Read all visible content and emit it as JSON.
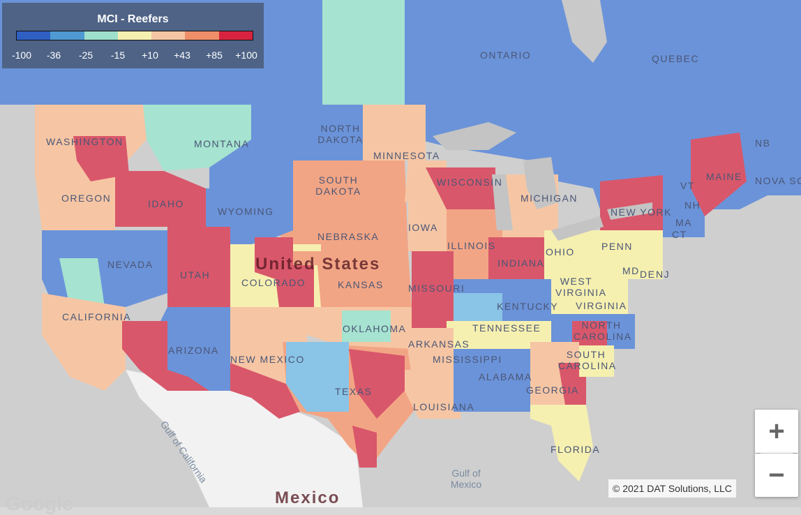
{
  "legend": {
    "title": "MCI - Reefers",
    "colors": [
      "#2f5fc2",
      "#4f9ad2",
      "#9fe0cc",
      "#f6f0b0",
      "#f6c6a4",
      "#ef8f6a",
      "#d7233f"
    ],
    "ticks": [
      "-100",
      "-36",
      "-25",
      "-15",
      "+10",
      "+43",
      "+85",
      "+100"
    ]
  },
  "map": {
    "colors": {
      "land_base": "#c8c8c8",
      "mexico": "#f2f2f2",
      "canada": "#6b93d9",
      "water_lines": "#9aa9bd"
    },
    "labels": {
      "states": [
        "WASHINGTON",
        "OREGON",
        "IDAHO",
        "MONTANA",
        "NORTH DAKOTA",
        "SOUTH DAKOTA",
        "MINNESOTA",
        "WYOMING",
        "NEBRASKA",
        "IOWA",
        "WISCONSIN",
        "MICHIGAN",
        "NEVADA",
        "UTAH",
        "COLORADO",
        "KANSAS",
        "MISSOURI",
        "ILLINOIS",
        "INDIANA",
        "OHIO",
        "PENN",
        "NEW YORK",
        "VT",
        "NH",
        "MAINE",
        "MA",
        "CT",
        "NJ",
        "MD",
        "DE",
        "CALIFORNIA",
        "ARIZONA",
        "NEW MEXICO",
        "OKLAHOMA",
        "TEXAS",
        "ARKANSAS",
        "LOUISIANA",
        "MISSISSIPPI",
        "ALABAMA",
        "GEORGIA",
        "TENNESSEE",
        "KENTUCKY",
        "WEST VIRGINIA",
        "VIRGINIA",
        "NORTH CAROLINA",
        "SOUTH CAROLINA",
        "FLORIDA"
      ],
      "canada": [
        "ONTARIO",
        "QUEBEC",
        "NB",
        "NOVA SC"
      ],
      "country": [
        "United States",
        "Mexico"
      ],
      "water": [
        "Gulf of Mexico",
        "Gulf of California"
      ]
    }
  },
  "controls": {
    "zoom_in": "+",
    "zoom_out": "−"
  },
  "copyright": "© 2021 DAT Solutions, LLC",
  "brand": "Google"
}
